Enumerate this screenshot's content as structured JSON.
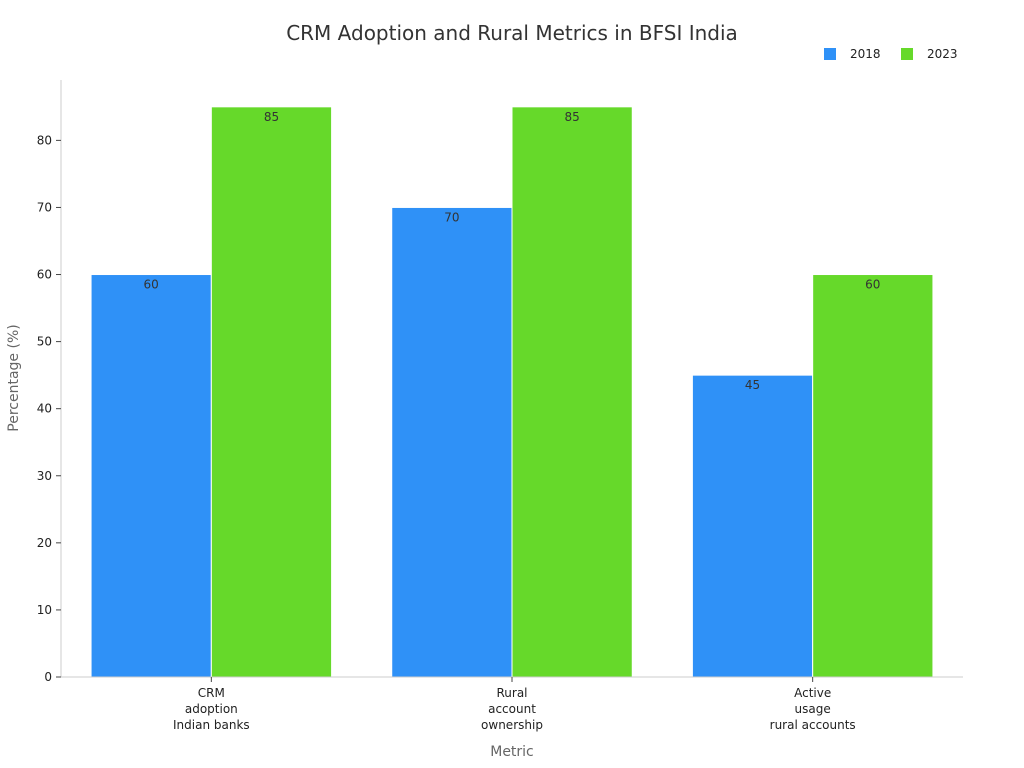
{
  "chart_data": {
    "type": "bar",
    "title": "CRM Adoption and Rural Metrics in BFSI India",
    "xlabel": "Metric",
    "ylabel": "Percentage (%)",
    "categories": [
      [
        "CRM",
        "adoption",
        "Indian banks"
      ],
      [
        "Rural",
        "account",
        "ownership"
      ],
      [
        "Active",
        "usage",
        "rural accounts"
      ]
    ],
    "series": [
      {
        "name": "2018",
        "values": [
          60,
          70,
          45
        ],
        "color": "#2f91f7"
      },
      {
        "name": "2023",
        "values": [
          85,
          85,
          60
        ],
        "color": "#66d92a"
      }
    ],
    "ylim": [
      0,
      89
    ],
    "yticks": [
      0,
      10,
      20,
      30,
      40,
      50,
      60,
      70,
      80
    ],
    "grid": false,
    "legend_position": "top-right",
    "data_labels": true
  }
}
